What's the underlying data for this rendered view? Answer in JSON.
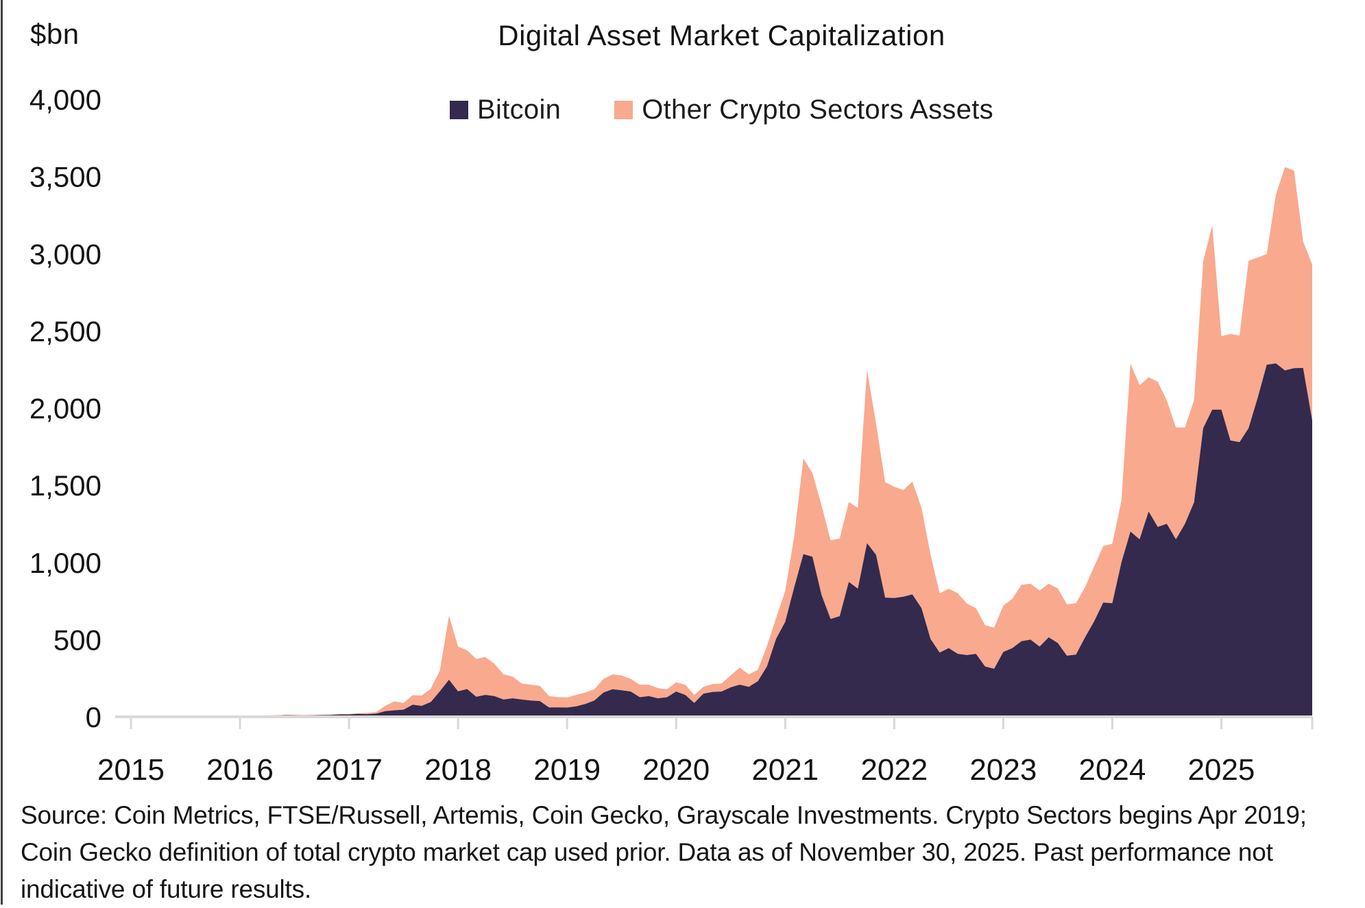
{
  "header": {
    "unit_label": "$bn",
    "title": "Digital Asset Market Capitalization"
  },
  "legend": {
    "items": [
      {
        "label": "Bitcoin",
        "color": "#332a4d"
      },
      {
        "label": "Other Crypto Sectors Assets",
        "color": "#f9a98e"
      }
    ]
  },
  "footnote": {
    "text": "Source: Coin Metrics, FTSE/Russell, Artemis, Coin Gecko, Grayscale Investments. Crypto Sectors begins Apr 2019; Coin Gecko definition of total crypto market cap used prior. Data as of November 30, 2025. Past performance not indicative of future results."
  },
  "chart_data": {
    "type": "area",
    "stacked": true,
    "title": "Digital Asset Market Capitalization",
    "ylabel": "$bn",
    "ylim": [
      0,
      4000
    ],
    "grid": false,
    "legend_position": "top-center",
    "x_start_month": "2015-01",
    "x_end_month": "2025-11",
    "xtick_labels": [
      "2015",
      "2016",
      "2017",
      "2018",
      "2019",
      "2020",
      "2021",
      "2022",
      "2023",
      "2024",
      "2025"
    ],
    "ytick_values": [
      0,
      500,
      1000,
      1500,
      2000,
      2500,
      3000,
      3500,
      4000
    ],
    "ytick_labels": [
      "0",
      "500",
      "1,000",
      "1,500",
      "2,000",
      "2,500",
      "3,000",
      "3,500",
      "4,000"
    ],
    "axis_color": "#d8d8d8",
    "series": [
      {
        "name": "Bitcoin",
        "color": "#332a4d",
        "values": [
          3,
          3.5,
          3.4,
          3.3,
          3.3,
          3.8,
          4.1,
          3.3,
          3.4,
          4.6,
          5.6,
          6.5,
          5.8,
          6.7,
          6.4,
          6.9,
          8.2,
          10.5,
          9.7,
          9.1,
          9.7,
          11.2,
          11.8,
          15.5,
          15.4,
          19,
          17.5,
          21,
          37,
          42,
          46,
          78,
          71,
          96,
          165,
          240,
          165,
          180,
          130,
          142,
          134,
          112,
          120,
          112,
          105,
          102,
          61,
          61,
          60,
          68,
          83,
          105,
          157,
          179,
          172,
          164,
          127,
          134,
          120,
          127,
          164,
          142,
          90,
          150,
          161,
          164,
          191,
          208,
          194,
          231,
          327,
          505,
          615,
          840,
          1054,
          1037,
          790,
          634,
          652,
          874,
          830,
          1125,
          1050,
          772,
          770,
          778,
          793,
          704,
          504,
          416,
          445,
          408,
          400,
          408,
          326,
          311,
          420,
          445,
          490,
          500,
          455,
          515,
          478,
          396,
          403,
          515,
          618,
          740,
          736,
          1000,
          1200,
          1150,
          1330,
          1230,
          1250,
          1150,
          1250,
          1390,
          1870,
          1990,
          1990,
          1790,
          1780,
          1870,
          2067,
          2281,
          2290,
          2244,
          2259,
          2260,
          1920
        ]
      },
      {
        "name": "Other Crypto Sectors Assets",
        "color": "#f9a98e",
        "values": [
          0.5,
          0.5,
          0.5,
          0.5,
          0.5,
          0.6,
          0.7,
          0.6,
          0.6,
          0.7,
          0.8,
          0.9,
          0.8,
          1.0,
          1.6,
          1.8,
          2.3,
          2.7,
          2.5,
          2.4,
          2.5,
          2.3,
          2.3,
          2.5,
          3,
          4,
          8,
          10,
          35,
          58,
          44,
          62,
          67,
          86,
          135,
          415,
          290,
          250,
          245,
          245,
          210,
          163,
          140,
          104,
          103,
          99,
          73,
          66,
          65,
          74,
          74,
          74,
          88,
          96,
          96,
          81,
          81,
          74,
          66,
          52,
          59,
          66,
          52,
          44,
          51,
          52,
          77,
          111,
          81,
          74,
          133,
          135,
          200,
          330,
          620,
          542,
          580,
          509,
          503,
          518,
          524,
          1123,
          850,
          748,
          721,
          691,
          731,
          650,
          547,
          384,
          385,
          392,
          333,
          296,
          267,
          267,
          300,
          320,
          365,
          362,
          363,
          347,
          354,
          333,
          333,
          325,
          355,
          366,
          385,
          400,
          1089,
          998,
          870,
          941,
          800,
          725,
          625,
          662,
          1080,
          1194,
          476,
          690,
          690,
          1084,
          909,
          717,
          1093,
          1317,
          1280,
          820,
          1010
        ]
      }
    ]
  }
}
